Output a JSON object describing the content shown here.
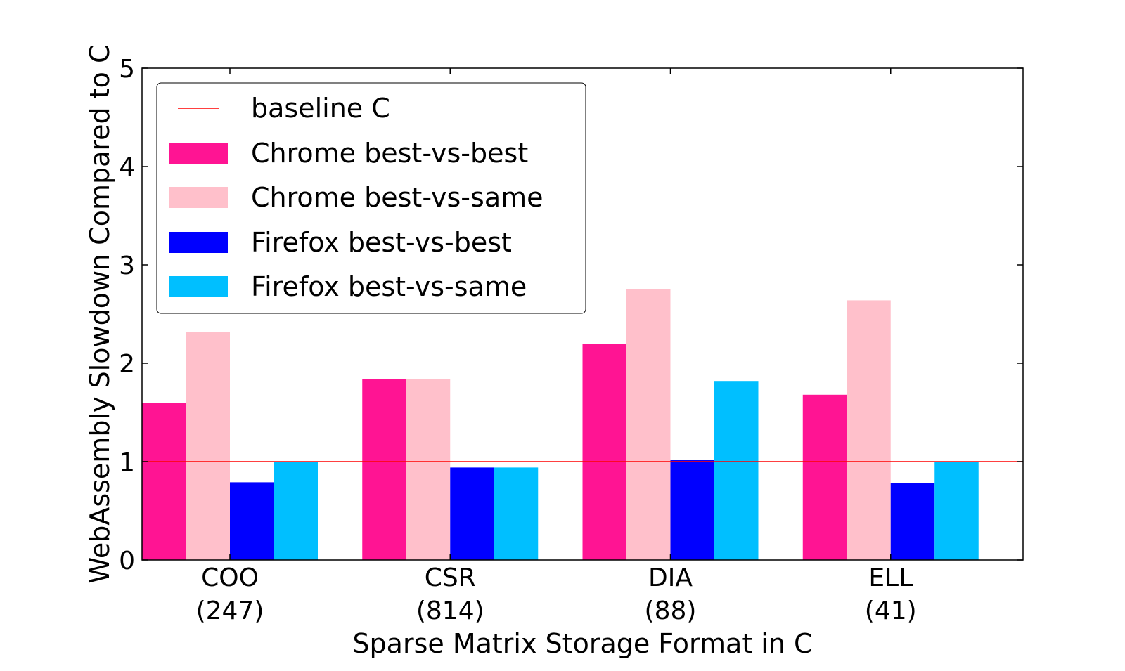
{
  "chart_data": {
    "type": "bar",
    "xlabel": "Sparse Matrix Storage Format in C",
    "ylabel": "WebAssembly Slowdown Compared to C",
    "ylim": [
      0,
      5
    ],
    "yticks": [
      "0",
      "1",
      "2",
      "3",
      "4",
      "5"
    ],
    "categories": [
      {
        "name": "COO",
        "count": "(247)"
      },
      {
        "name": "CSR",
        "count": "(814)"
      },
      {
        "name": "DIA",
        "count": "(88)"
      },
      {
        "name": "ELL",
        "count": "(41)"
      }
    ],
    "baseline": {
      "name": "baseline C",
      "value": 1,
      "color": "#ff0000"
    },
    "series": [
      {
        "name": "Chrome best-vs-best",
        "color": "#ff1493",
        "values": [
          1.6,
          1.84,
          2.2,
          1.68
        ]
      },
      {
        "name": "Chrome best-vs-same",
        "color": "#ffc0cb",
        "values": [
          2.32,
          1.84,
          2.75,
          2.64
        ]
      },
      {
        "name": "Firefox best-vs-best",
        "color": "#0000ff",
        "values": [
          0.79,
          0.94,
          1.02,
          0.78
        ]
      },
      {
        "name": "Firefox best-vs-same",
        "color": "#00bfff",
        "values": [
          1.0,
          0.94,
          1.82,
          1.0
        ]
      }
    ],
    "grid": false,
    "legend_position": "top-left"
  }
}
